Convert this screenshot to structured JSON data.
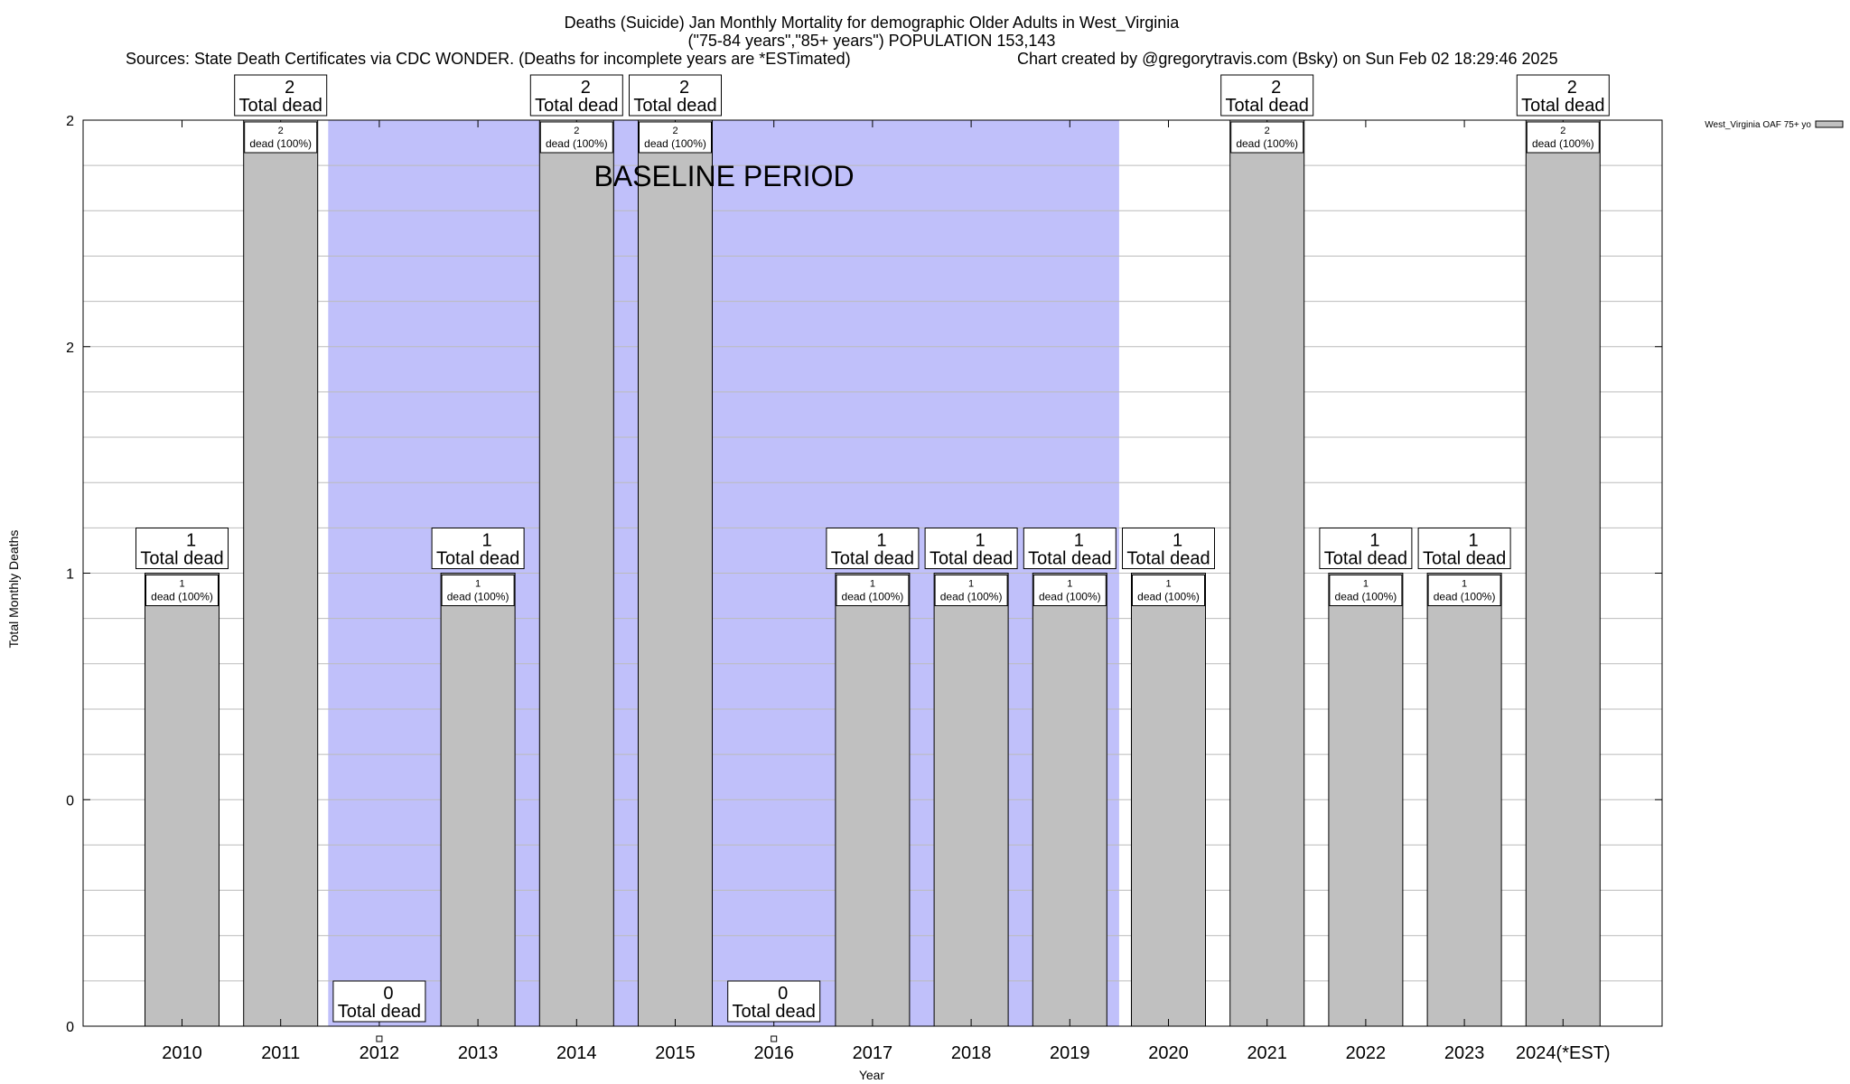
{
  "chart_data": {
    "type": "bar",
    "title": "Deaths (Suicide) Jan Monthly Mortality for demographic Older Adults in West_Virginia",
    "subtitle": "(\"75-84 years\",\"85+ years\") POPULATION 153,143",
    "sources": "Sources: State Death Certificates via CDC WONDER. (Deaths for incomplete years are *ESTimated)",
    "credit": "Chart created by @gregorytravis.com (Bsky) on Sun Feb 02 18:29:46 2025",
    "xlabel": "Year",
    "ylabel": "Total Monthly Deaths",
    "categories": [
      "2010",
      "2011",
      "2012",
      "2013",
      "2014",
      "2015",
      "2016",
      "2017",
      "2018",
      "2019",
      "2020",
      "2021",
      "2022",
      "2023",
      "2024(*EST)"
    ],
    "series": [
      {
        "name": "West_Virginia OAF 75+ yo",
        "values": [
          1,
          2,
          0,
          1,
          2,
          2,
          0,
          1,
          1,
          1,
          1,
          2,
          1,
          1,
          2
        ]
      }
    ],
    "ylim": [
      0,
      2
    ],
    "y_tick_labels": [
      "0",
      "0",
      "1",
      "2",
      "2"
    ],
    "total_label_suffix": "Total dead",
    "inner_label_suffix": "dead (100%)",
    "baseline": {
      "label": "BASELINE PERIOD",
      "from": "2012",
      "to": "2019"
    },
    "colors": {
      "bar": "#c0c0c0",
      "baseline": "#c0c0fa",
      "grid": "#bbbbbb",
      "axis": "#000000"
    },
    "grid": true,
    "legend_position": "top-right"
  }
}
